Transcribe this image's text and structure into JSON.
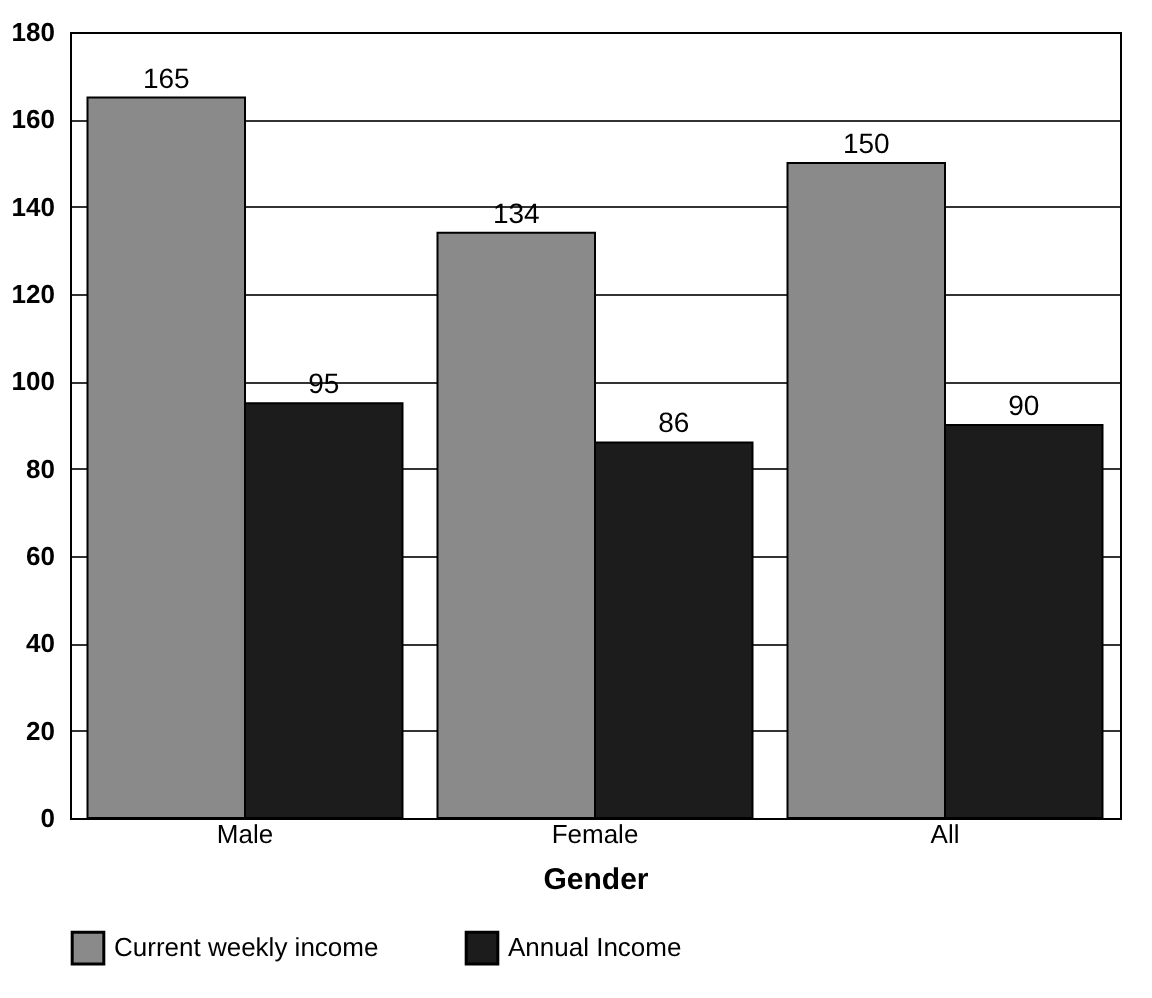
{
  "chart_data": {
    "type": "bar",
    "xlabel": "Gender",
    "categories": [
      "Male",
      "Female",
      "All"
    ],
    "series": [
      {
        "name": "Current weekly income",
        "color": "#8a8a8a",
        "values": [
          165,
          134,
          150
        ]
      },
      {
        "name": "Annual Income",
        "color": "#1c1c1c",
        "values": [
          95,
          86,
          90
        ]
      }
    ],
    "ylim": [
      0,
      180
    ],
    "yticks": [
      0,
      20,
      40,
      60,
      80,
      100,
      120,
      140,
      160,
      180
    ],
    "grid": "y",
    "legend": "bottom",
    "data_labels": true
  }
}
